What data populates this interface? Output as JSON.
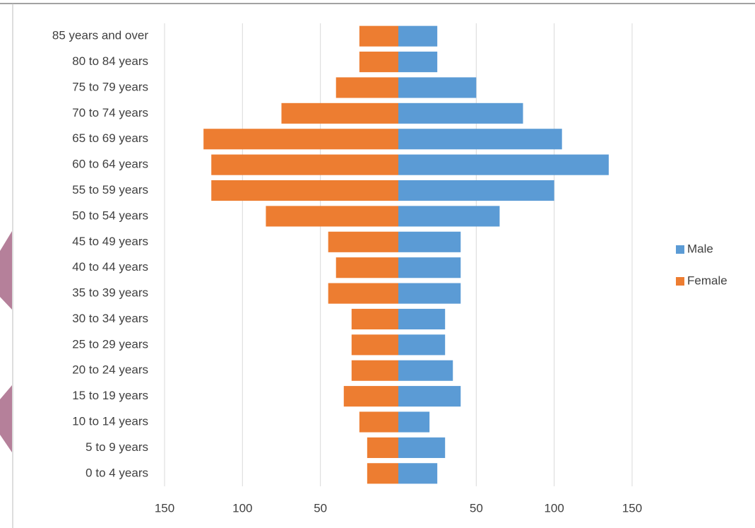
{
  "chart_data": {
    "type": "pyramid",
    "categories": [
      "0 to 4 years",
      "5 to 9 years",
      "10 to 14 years",
      "15 to 19 years",
      "20 to 24 years",
      "25 to 29 years",
      "30 to 34 years",
      "35 to 39 years",
      "40 to 44 years",
      "45 to 49 years",
      "50 to 54 years",
      "55 to 59 years",
      "60 to 64 years",
      "65 to 69 years",
      "70 to 74 years",
      "75 to 79 years",
      "80 to 84 years",
      "85 years and over"
    ],
    "series": [
      {
        "name": "Male",
        "color": "#5b9bd5",
        "values": [
          25,
          30,
          20,
          40,
          35,
          30,
          30,
          40,
          40,
          40,
          65,
          100,
          135,
          105,
          80,
          50,
          25,
          25
        ]
      },
      {
        "name": "Female",
        "color": "#ed7d31",
        "values": [
          -20,
          -20,
          -25,
          -35,
          -30,
          -30,
          -30,
          -45,
          -40,
          -45,
          -85,
          -120,
          -120,
          -125,
          -75,
          -40,
          -25,
          -25
        ]
      }
    ],
    "xlim": [
      -150,
      150
    ],
    "xticks": [
      {
        "value": -150,
        "label": "150"
      },
      {
        "value": -100,
        "label": "100"
      },
      {
        "value": -50,
        "label": "50"
      },
      50,
      100,
      150
    ],
    "grid": true
  }
}
